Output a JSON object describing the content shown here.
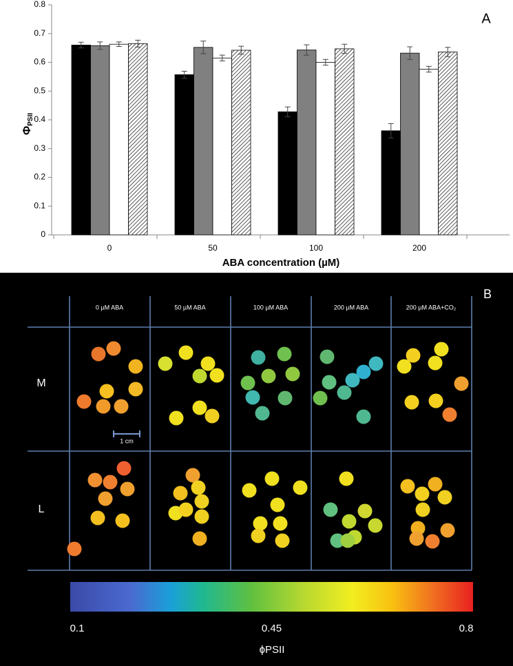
{
  "chart_data": {
    "type": "bar",
    "panel_label": "A",
    "ylabel_symbol": "Φ",
    "ylabel_subscript": "PSII",
    "xlabel": "ABA concentration (µM)",
    "categories": [
      "0",
      "50",
      "100",
      "200"
    ],
    "series": [
      {
        "color": "#000000",
        "values": [
          0.66,
          0.557,
          0.428,
          0.362
        ],
        "errors": [
          0.01,
          0.012,
          0.017,
          0.025
        ]
      },
      {
        "color": "#808080",
        "values": [
          0.658,
          0.652,
          0.643,
          0.632
        ],
        "errors": [
          0.013,
          0.022,
          0.018,
          0.022
        ]
      },
      {
        "color": "#ffffff",
        "values": [
          0.663,
          0.615,
          0.6,
          0.576
        ],
        "errors": [
          0.008,
          0.01,
          0.01,
          0.01
        ]
      },
      {
        "color": "#ffffff",
        "pattern": "hatch",
        "values": [
          0.665,
          0.642,
          0.647,
          0.636
        ],
        "errors": [
          0.012,
          0.014,
          0.016,
          0.016
        ]
      }
    ],
    "ylim": [
      0,
      0.8
    ],
    "yticks": [
      0,
      0.1,
      0.2,
      0.3,
      0.4,
      0.5,
      0.6,
      0.7,
      0.8
    ]
  },
  "panel_b": {
    "panel_label": "B",
    "columns": [
      "0 µM ABA",
      "50 µM ABA",
      "100 µM ABA",
      "200 µM ABA",
      "200 µM ABA+CO₂"
    ],
    "rows": [
      "M",
      "L"
    ],
    "scale_bar": "1 cm",
    "colorbar": {
      "lim": [
        0.1,
        0.8
      ],
      "ticks": [
        0.1,
        0.45,
        0.8
      ],
      "label": "ϕPSII"
    }
  }
}
